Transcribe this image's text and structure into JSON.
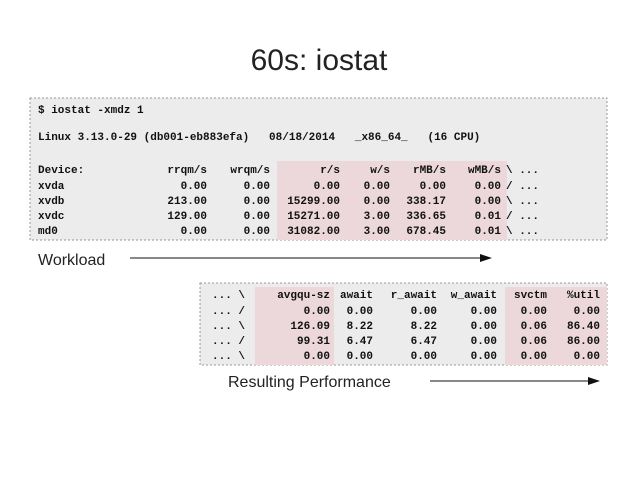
{
  "title": "60s: iostat",
  "command": "$ iostat -xmdz 1",
  "system_line": "Linux 3.13.0-29 (db001-eb883efa)   08/18/2014   _x86_64_   (16 CPU)",
  "device_table": {
    "header": [
      "Device:",
      "rrqm/s",
      "wrqm/s",
      "r/s",
      "w/s",
      "rMB/s",
      "wMB/s",
      "\\ ..."
    ],
    "rows": [
      [
        "xvda",
        "0.00",
        "0.00",
        "0.00",
        "0.00",
        "0.00",
        "0.00",
        "/ ..."
      ],
      [
        "xvdb",
        "213.00",
        "0.00",
        "15299.00",
        "0.00",
        "338.17",
        "0.00",
        "\\ ..."
      ],
      [
        "xvdc",
        "129.00",
        "0.00",
        "15271.00",
        "3.00",
        "336.65",
        "0.01",
        "/ ..."
      ],
      [
        "md0",
        "0.00",
        "0.00",
        "31082.00",
        "3.00",
        "678.45",
        "0.01",
        "\\ ..."
      ]
    ]
  },
  "workload_label": "Workload",
  "performance_table": {
    "header": [
      "... \\",
      "avgqu-sz",
      "await",
      "r_await",
      "w_await",
      "svctm",
      "%util"
    ],
    "rows": [
      [
        "... /",
        "0.00",
        "0.00",
        "0.00",
        "0.00",
        "0.00",
        "0.00"
      ],
      [
        "... \\",
        "126.09",
        "8.22",
        "8.22",
        "0.00",
        "0.06",
        "86.40"
      ],
      [
        "... /",
        "99.31",
        "6.47",
        "6.47",
        "0.00",
        "0.06",
        "86.00"
      ],
      [
        "... \\",
        "0.00",
        "0.00",
        "0.00",
        "0.00",
        "0.00",
        "0.00"
      ]
    ]
  },
  "performance_label": "Resulting Performance"
}
